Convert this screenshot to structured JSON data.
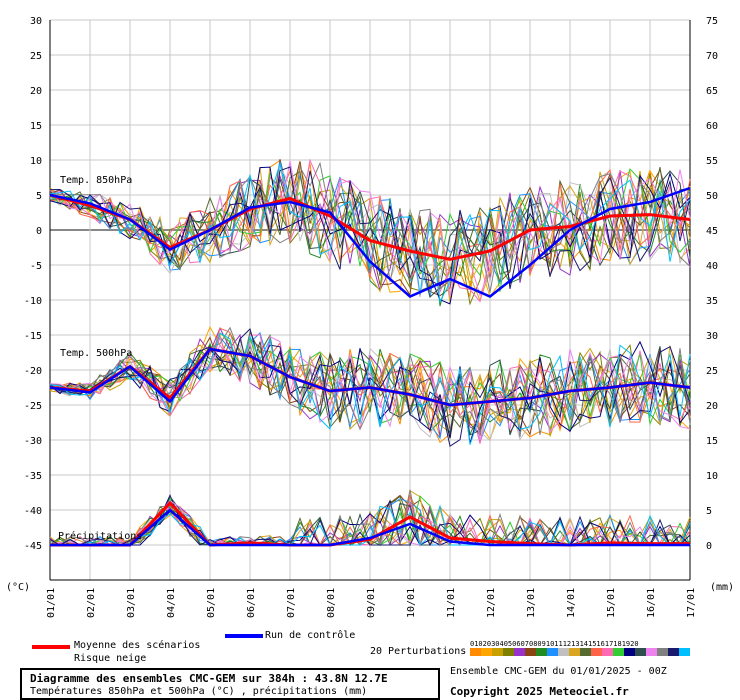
{
  "chart_data": {
    "type": "line",
    "x_dates": [
      "01/01",
      "02/01",
      "03/01",
      "04/01",
      "05/01",
      "06/01",
      "07/01",
      "08/01",
      "09/01",
      "10/01",
      "11/01",
      "12/01",
      "13/01",
      "14/01",
      "15/01",
      "16/01",
      "17/01"
    ],
    "y_left": {
      "unit": "(°C)",
      "ticks": [
        30,
        25,
        20,
        15,
        10,
        5,
        0,
        -5,
        -10,
        -15,
        -20,
        -25,
        -30,
        -35,
        -40,
        -45
      ],
      "range": [
        -45,
        30
      ]
    },
    "y_right": {
      "unit": "(mm)",
      "ticks": [
        75,
        70,
        65,
        60,
        55,
        50,
        45,
        40,
        35,
        30,
        25,
        20,
        15,
        10,
        5,
        0
      ],
      "range": [
        0,
        75
      ]
    },
    "panels": {
      "t850": "Temp. 850hPa",
      "t500": "Temp. 500hPa",
      "precip": "Précipitations"
    },
    "series": [
      {
        "name": "Moyenne des scénarios",
        "color": "#ff0000",
        "t850": [
          5,
          3.5,
          1.5,
          -2.5,
          0,
          3,
          4.5,
          2,
          -1.5,
          -3,
          -4.2,
          -3,
          0,
          0.5,
          2,
          2.2,
          1.5
        ],
        "t500": [
          -22.5,
          -23,
          -19.5,
          -24,
          -17,
          -18,
          -21,
          -23,
          -22.5,
          -23.5,
          -25,
          -24.5,
          -24,
          -23,
          -22.5,
          -21.8,
          -22.5
        ],
        "precip": [
          0,
          0,
          0,
          6,
          0,
          0.3,
          0,
          0,
          0.8,
          4,
          1,
          0.5,
          0.2,
          0,
          0.3,
          0.2,
          0.2
        ]
      },
      {
        "name": "Run de contrôle",
        "color": "#0000ff",
        "t850": [
          5,
          3.8,
          1.5,
          -2.8,
          0,
          3.2,
          4,
          2.5,
          -4.5,
          -9.5,
          -7,
          -9.5,
          -5,
          0,
          3,
          4,
          6
        ],
        "t500": [
          -22.5,
          -23.2,
          -19.5,
          -24.5,
          -17,
          -18,
          -21,
          -23,
          -22.5,
          -23.5,
          -25,
          -24.5,
          -24,
          -23,
          -22.5,
          -21.8,
          -22.5
        ],
        "precip": [
          0,
          0,
          0,
          5,
          0,
          0,
          0,
          0,
          1,
          3,
          0.5,
          0,
          0,
          0,
          0,
          0,
          0
        ]
      }
    ],
    "perturbations": {
      "count_label": "20 Perturbations",
      "ids": [
        "01",
        "02",
        "03",
        "04",
        "05",
        "06",
        "07",
        "08",
        "09",
        "10",
        "11",
        "12",
        "13",
        "14",
        "15",
        "16",
        "17",
        "18",
        "19",
        "20"
      ],
      "colors": [
        "#ff8c00",
        "#ffa500",
        "#c8a000",
        "#808000",
        "#9932cc",
        "#8b4513",
        "#228b22",
        "#1e90ff",
        "#c0c0c0",
        "#daa520",
        "#556b2f",
        "#ff6347",
        "#ff69b4",
        "#32cd32",
        "#000080",
        "#2f4f4f",
        "#ee82ee",
        "#808080",
        "#191970",
        "#00bfff"
      ]
    },
    "legend": {
      "mean": "Moyenne des scénarios",
      "snow": "Risque neige",
      "control": "Run de contrôle"
    },
    "footer": {
      "title": "Diagramme des ensembles CMC-GEM sur 384h : 43.8N 12.7E",
      "subtitle": "Températures 850hPa et 500hPa (°C) , précipitations (mm)",
      "ensemble": "Ensemble CMC-GEM du 01/01/2025 - 00Z",
      "copyright": "Copyright 2025 Meteociel.fr"
    }
  }
}
